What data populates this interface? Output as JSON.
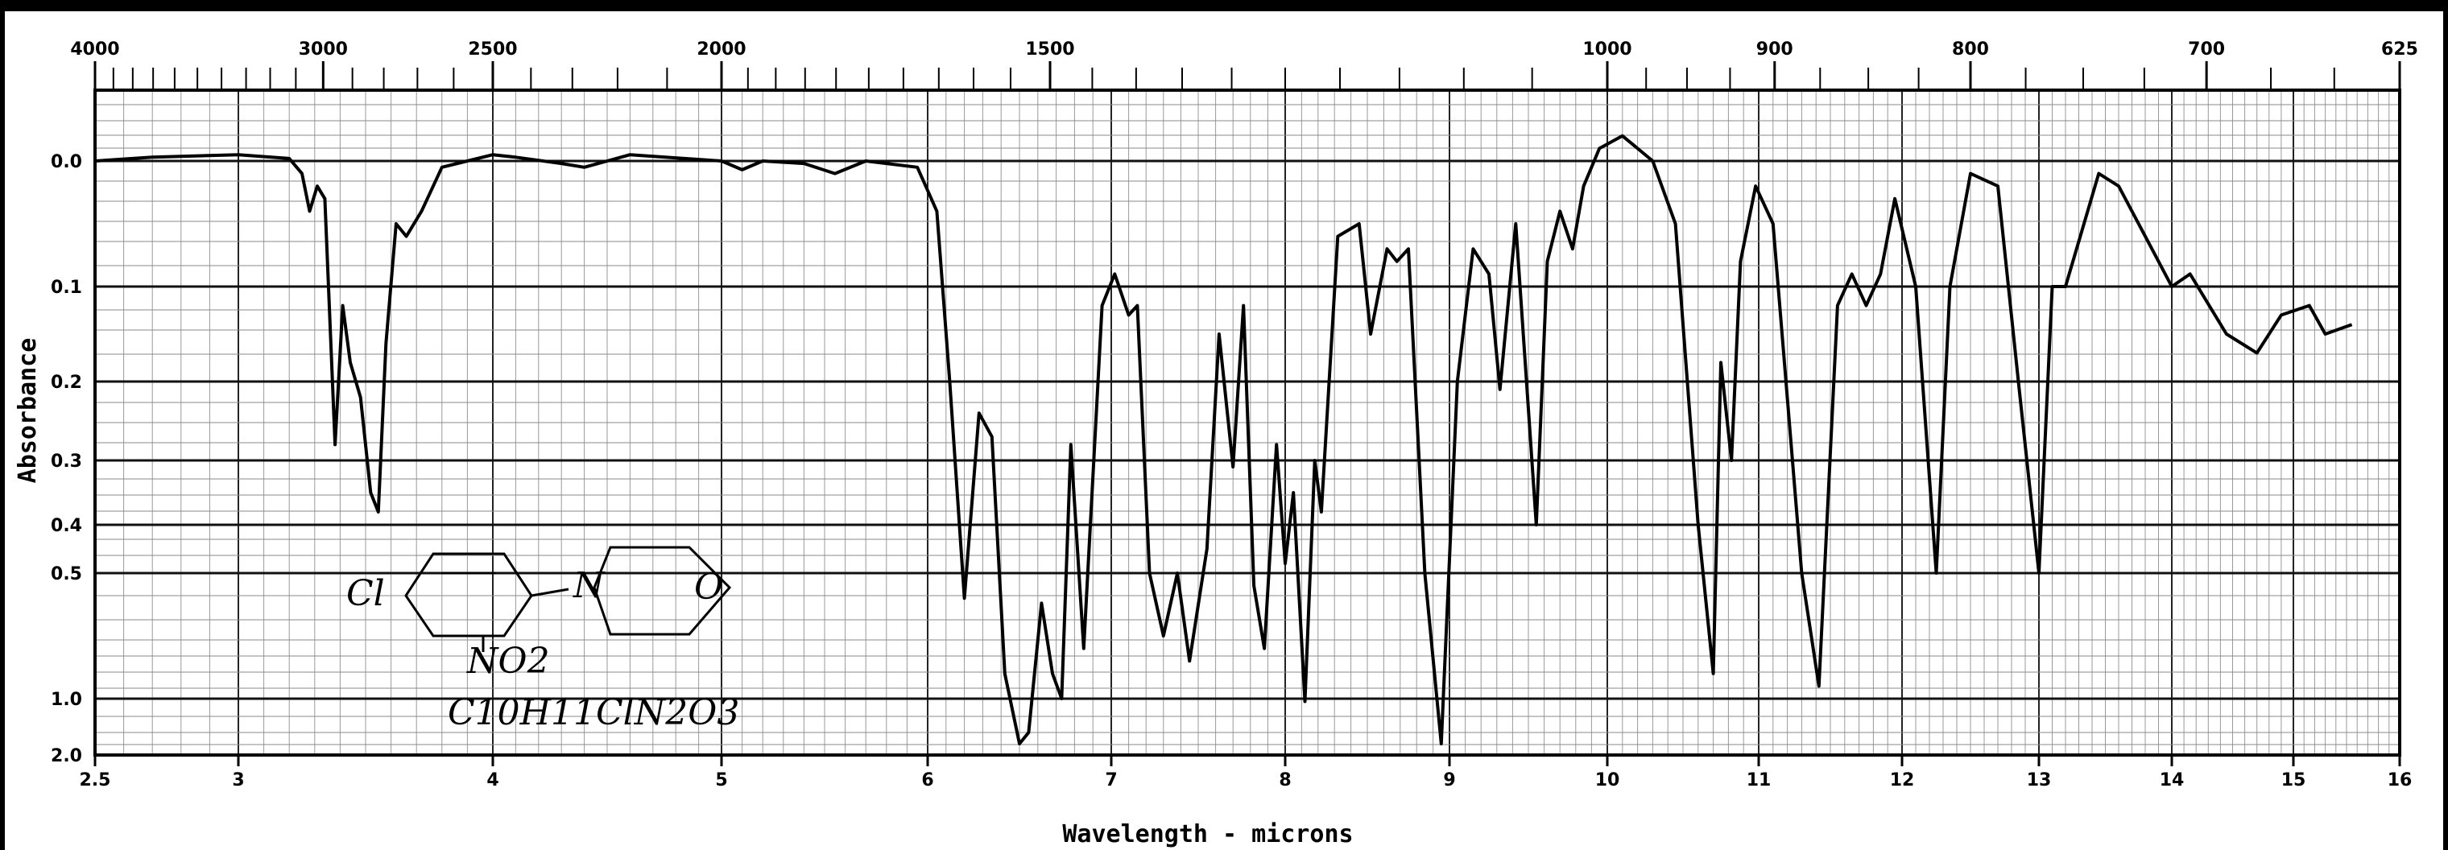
{
  "chart_data": {
    "type": "line",
    "title": "",
    "xlabel": "Wavelength - microns",
    "ylabel": "Absorbance",
    "x_unit": "microns",
    "xlim": [
      2.5,
      16
    ],
    "y_scale": "absorbance",
    "grid": true,
    "x_ticks": [
      "2.5",
      "3",
      "4",
      "5",
      "6",
      "7",
      "8",
      "9",
      "10",
      "11",
      "12",
      "13",
      "14",
      "15",
      "16"
    ],
    "x_tick_values": [
      2.5,
      3,
      4,
      5,
      6,
      7,
      8,
      9,
      10,
      11,
      12,
      13,
      14,
      15,
      16
    ],
    "top_ticks": [
      "4000",
      "3000",
      "2500",
      "2000",
      "1500",
      "1000",
      "900",
      "800",
      "700",
      "625"
    ],
    "top_tick_values": [
      4000,
      3000,
      2500,
      2000,
      1500,
      1000,
      900,
      800,
      700,
      625
    ],
    "top_unit": "cm-1",
    "y_ticks": [
      "0.0",
      "0.1",
      "0.2",
      "0.3",
      "0.4",
      "0.5",
      "1.0",
      "2.0"
    ],
    "y_tick_values": [
      0.0,
      0.1,
      0.2,
      0.3,
      0.4,
      0.5,
      1.0,
      2.0
    ],
    "annotations": [
      "Cl",
      "N",
      "O",
      "NO2",
      "C10H11ClN2O3"
    ],
    "series": [
      {
        "values": [
          [
            2.5,
            0.0
          ],
          [
            2.7,
            -0.003
          ],
          [
            3.0,
            -0.005
          ],
          [
            3.2,
            -0.002
          ],
          [
            3.25,
            0.01
          ],
          [
            3.28,
            0.04
          ],
          [
            3.31,
            0.02
          ],
          [
            3.34,
            0.03
          ],
          [
            3.38,
            0.28
          ],
          [
            3.41,
            0.12
          ],
          [
            3.44,
            0.18
          ],
          [
            3.48,
            0.22
          ],
          [
            3.52,
            0.35
          ],
          [
            3.55,
            0.38
          ],
          [
            3.58,
            0.16
          ],
          [
            3.62,
            0.05
          ],
          [
            3.66,
            0.06
          ],
          [
            3.72,
            0.04
          ],
          [
            3.8,
            0.005
          ],
          [
            3.9,
            0.0
          ],
          [
            4.0,
            -0.005
          ],
          [
            4.1,
            -0.003
          ],
          [
            4.3,
            0.002
          ],
          [
            4.4,
            0.005
          ],
          [
            4.6,
            -0.005
          ],
          [
            5.0,
            0.0
          ],
          [
            5.1,
            0.007
          ],
          [
            5.2,
            0.0
          ],
          [
            5.4,
            0.002
          ],
          [
            5.55,
            0.01
          ],
          [
            5.7,
            0.0
          ],
          [
            5.95,
            0.005
          ],
          [
            6.05,
            0.04
          ],
          [
            6.12,
            0.2
          ],
          [
            6.2,
            0.6
          ],
          [
            6.28,
            0.24
          ],
          [
            6.35,
            0.27
          ],
          [
            6.42,
            0.9
          ],
          [
            6.5,
            1.8
          ],
          [
            6.55,
            1.6
          ],
          [
            6.62,
            0.62
          ],
          [
            6.68,
            0.9
          ],
          [
            6.73,
            1.0
          ],
          [
            6.78,
            0.28
          ],
          [
            6.85,
            0.8
          ],
          [
            6.95,
            0.12
          ],
          [
            7.02,
            0.09
          ],
          [
            7.1,
            0.13
          ],
          [
            7.15,
            0.12
          ],
          [
            7.22,
            0.5
          ],
          [
            7.3,
            0.75
          ],
          [
            7.38,
            0.5
          ],
          [
            7.45,
            0.85
          ],
          [
            7.55,
            0.45
          ],
          [
            7.62,
            0.15
          ],
          [
            7.7,
            0.31
          ],
          [
            7.76,
            0.12
          ],
          [
            7.82,
            0.55
          ],
          [
            7.88,
            0.8
          ],
          [
            7.95,
            0.28
          ],
          [
            8.0,
            0.48
          ],
          [
            8.05,
            0.35
          ],
          [
            8.12,
            1.05
          ],
          [
            8.18,
            0.3
          ],
          [
            8.22,
            0.38
          ],
          [
            8.32,
            0.06
          ],
          [
            8.45,
            0.05
          ],
          [
            8.52,
            0.15
          ],
          [
            8.62,
            0.07
          ],
          [
            8.68,
            0.08
          ],
          [
            8.75,
            0.07
          ],
          [
            8.85,
            0.5
          ],
          [
            8.95,
            1.8
          ],
          [
            9.05,
            0.2
          ],
          [
            9.15,
            0.07
          ],
          [
            9.25,
            0.09
          ],
          [
            9.32,
            0.21
          ],
          [
            9.42,
            0.05
          ],
          [
            9.55,
            0.4
          ],
          [
            9.62,
            0.08
          ],
          [
            9.7,
            0.04
          ],
          [
            9.78,
            0.07
          ],
          [
            9.85,
            0.02
          ],
          [
            9.95,
            -0.01
          ],
          [
            10.1,
            -0.02
          ],
          [
            10.3,
            0.0
          ],
          [
            10.45,
            0.05
          ],
          [
            10.6,
            0.4
          ],
          [
            10.7,
            0.9
          ],
          [
            10.75,
            0.18
          ],
          [
            10.82,
            0.3
          ],
          [
            10.88,
            0.08
          ],
          [
            10.98,
            0.02
          ],
          [
            11.1,
            0.05
          ],
          [
            11.3,
            0.5
          ],
          [
            11.42,
            0.95
          ],
          [
            11.55,
            0.12
          ],
          [
            11.65,
            0.09
          ],
          [
            11.75,
            0.12
          ],
          [
            11.85,
            0.09
          ],
          [
            11.95,
            0.03
          ],
          [
            12.1,
            0.1
          ],
          [
            12.25,
            0.5
          ],
          [
            12.35,
            0.1
          ],
          [
            12.5,
            0.01
          ],
          [
            12.7,
            0.02
          ],
          [
            12.85,
            0.2
          ],
          [
            13.0,
            0.5
          ],
          [
            13.1,
            0.1
          ],
          [
            13.2,
            0.1
          ],
          [
            13.45,
            0.01
          ],
          [
            13.6,
            0.02
          ],
          [
            13.85,
            0.07
          ],
          [
            14.0,
            0.1
          ],
          [
            14.15,
            0.09
          ],
          [
            14.45,
            0.15
          ],
          [
            14.7,
            0.17
          ],
          [
            14.9,
            0.13
          ],
          [
            15.15,
            0.12
          ],
          [
            15.3,
            0.15
          ],
          [
            15.55,
            0.14
          ]
        ]
      }
    ]
  }
}
